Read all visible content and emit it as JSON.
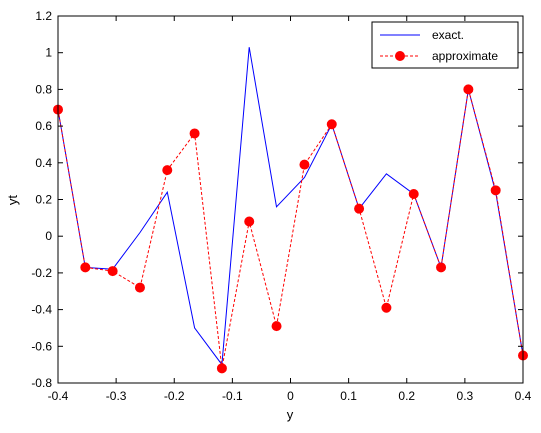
{
  "chart_data": {
    "type": "line",
    "xlabel": "y",
    "ylabel": "yt",
    "xlim": [
      -0.4,
      0.4
    ],
    "ylim": [
      -0.8,
      1.2
    ],
    "xticks": [
      -0.4,
      -0.3,
      -0.2,
      -0.1,
      0,
      0.1,
      0.2,
      0.3,
      0.4
    ],
    "xtick_labels": [
      "-0.4",
      "-0.3",
      "-0.2",
      "-0.1",
      "0",
      "0.1",
      "0.2",
      "0.3",
      "0.4"
    ],
    "yticks": [
      -0.8,
      -0.6,
      -0.4,
      -0.2,
      0,
      0.2,
      0.4,
      0.6,
      0.8,
      1,
      1.2
    ],
    "ytick_labels": [
      "-0.8",
      "-0.6",
      "-0.4",
      "-0.2",
      "0",
      "0.2",
      "0.4",
      "0.6",
      "0.8",
      "1",
      "1.2"
    ],
    "grid": false,
    "legend_position": "top-right",
    "series": [
      {
        "name": "exact.",
        "color": "#0000ff",
        "style": "solid",
        "marker": "none",
        "x": [
          -0.4,
          -0.353,
          -0.306,
          -0.259,
          -0.212,
          -0.165,
          -0.118,
          -0.071,
          -0.024,
          0.024,
          0.071,
          0.118,
          0.165,
          0.212,
          0.259,
          0.306,
          0.353,
          0.4
        ],
        "y": [
          0.69,
          -0.17,
          -0.18,
          0.02,
          0.24,
          -0.5,
          -0.7,
          1.03,
          0.16,
          0.32,
          0.61,
          0.15,
          0.34,
          0.23,
          -0.17,
          0.8,
          0.24,
          -0.65
        ]
      },
      {
        "name": "approximate",
        "color": "#ff0000",
        "style": "dashed",
        "marker": "circle",
        "x": [
          -0.4,
          -0.353,
          -0.306,
          -0.259,
          -0.212,
          -0.165,
          -0.118,
          -0.071,
          -0.024,
          0.024,
          0.071,
          0.118,
          0.165,
          0.212,
          0.259,
          0.306,
          0.353,
          0.4
        ],
        "y": [
          0.69,
          -0.17,
          -0.19,
          -0.28,
          0.36,
          0.56,
          -0.72,
          0.08,
          -0.49,
          0.39,
          0.61,
          0.15,
          -0.39,
          0.23,
          -0.17,
          0.8,
          0.25,
          -0.65
        ]
      }
    ]
  }
}
